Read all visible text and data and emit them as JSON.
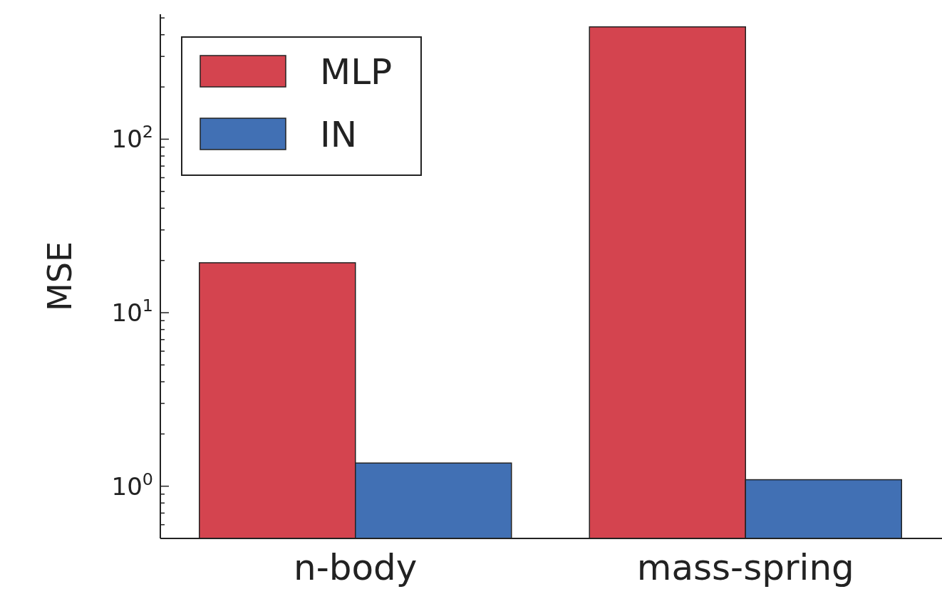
{
  "chart_data": {
    "type": "bar",
    "ylabel": "MSE",
    "categories": [
      "n-body",
      "mass-spring"
    ],
    "series": [
      {
        "name": "MLP",
        "color": "#d4444f",
        "values": [
          19.4,
          444
        ]
      },
      {
        "name": "IN",
        "color": "#4170b4",
        "values": [
          1.36,
          1.09
        ]
      }
    ],
    "log": "y",
    "ylim": [
      0.5,
      525
    ],
    "yticks": [
      {
        "value": 0.5,
        "label": null
      },
      {
        "value": 0.6,
        "label": null
      },
      {
        "value": 0.7,
        "label": null
      },
      {
        "value": 0.8,
        "label": null
      },
      {
        "value": 0.9,
        "label": null
      },
      {
        "value": 1,
        "label": "10$^{0}$"
      },
      {
        "value": 2,
        "label": null
      },
      {
        "value": 3,
        "label": null
      },
      {
        "value": 4,
        "label": null
      },
      {
        "value": 5,
        "label": null
      },
      {
        "value": 6,
        "label": null
      },
      {
        "value": 7,
        "label": null
      },
      {
        "value": 8,
        "label": null
      },
      {
        "value": 9,
        "label": null
      },
      {
        "value": 10,
        "label": "10$^{1}$"
      },
      {
        "value": 20,
        "label": null
      },
      {
        "value": 30,
        "label": null
      },
      {
        "value": 40,
        "label": null
      },
      {
        "value": 50,
        "label": null
      },
      {
        "value": 60,
        "label": null
      },
      {
        "value": 70,
        "label": null
      },
      {
        "value": 80,
        "label": null
      },
      {
        "value": 90,
        "label": null
      },
      {
        "value": 100,
        "label": "10$^{2}$"
      },
      {
        "value": 200,
        "label": null
      },
      {
        "value": 300,
        "label": null
      },
      {
        "value": 400,
        "label": null
      },
      {
        "value": 500,
        "label": null
      }
    ],
    "grid": false,
    "legend": "top left"
  }
}
